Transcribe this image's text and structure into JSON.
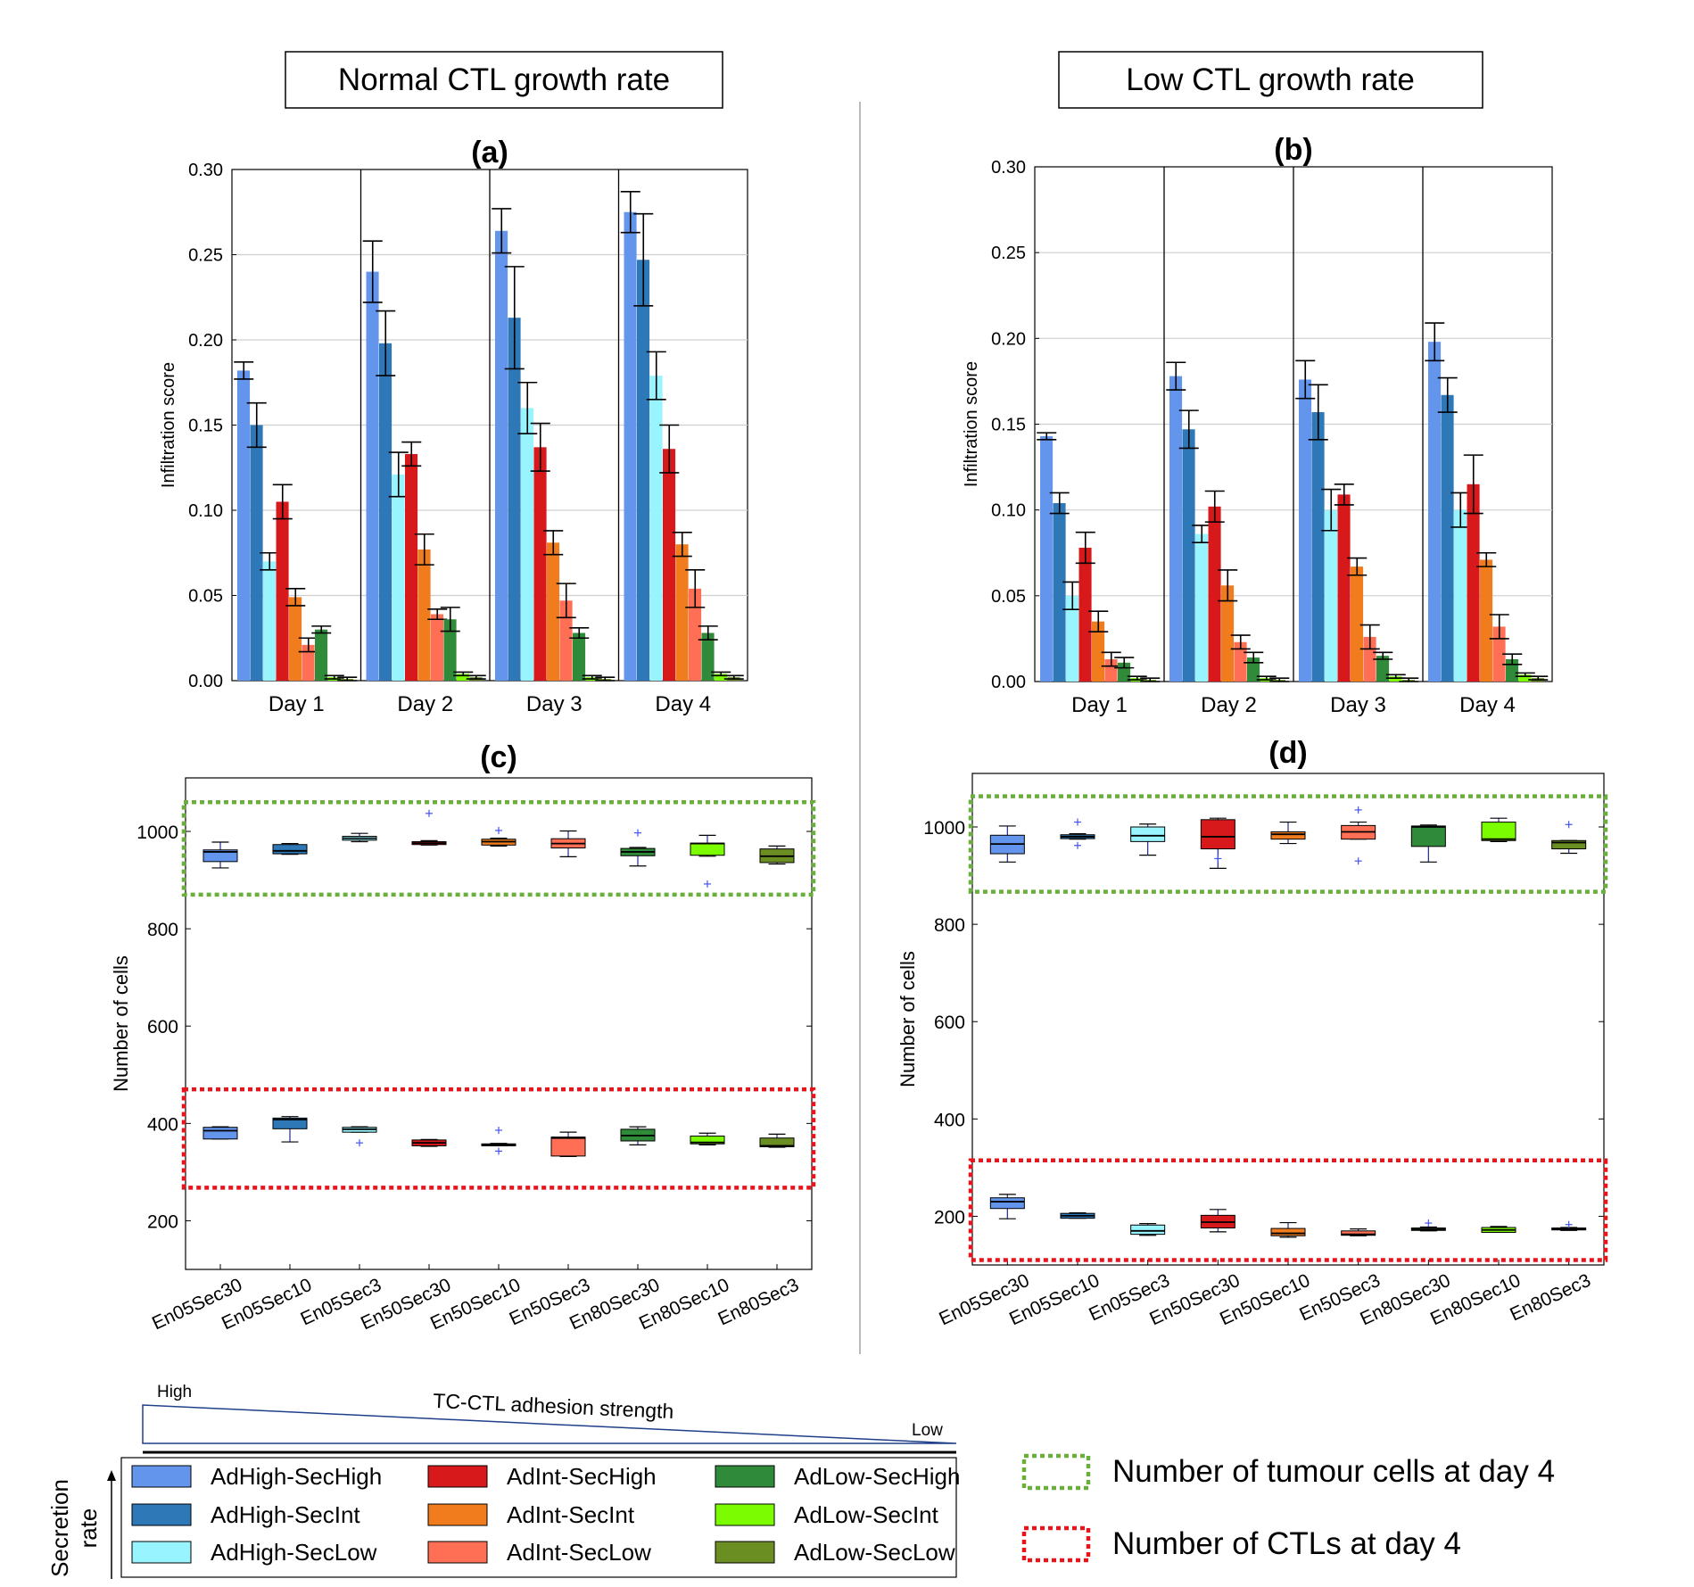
{
  "headers": {
    "left": "Normal CTL growth rate",
    "right": "Low CTL growth rate"
  },
  "groups": [
    {
      "name": "AdHigh-SecHigh",
      "color": "#6495ED"
    },
    {
      "name": "AdHigh-SecInt",
      "color": "#2E78B7"
    },
    {
      "name": "AdHigh-SecLow",
      "color": "#98F5FF"
    },
    {
      "name": "AdInt-SecHigh",
      "color": "#D7191C"
    },
    {
      "name": "AdInt-SecInt",
      "color": "#F07C1E"
    },
    {
      "name": "AdInt-SecLow",
      "color": "#FF6F55"
    },
    {
      "name": "AdLow-SecHigh",
      "color": "#2F8B3A"
    },
    {
      "name": "AdLow-SecInt",
      "color": "#7CFC00"
    },
    {
      "name": "AdLow-SecLow",
      "color": "#6B8E23"
    }
  ],
  "chart_data": [
    {
      "id": "a",
      "type": "bar",
      "title": "(a)",
      "xlabel": "",
      "ylabel": "Infiltration score",
      "ylim": [
        0,
        0.3
      ],
      "yticks": [
        "0.00",
        "0.05",
        "0.10",
        "0.15",
        "0.20",
        "0.25",
        "0.30"
      ],
      "categories": [
        "Day 1",
        "Day 2",
        "Day 3",
        "Day 4"
      ],
      "series": [
        {
          "name": "AdHigh-SecHigh",
          "values": [
            0.182,
            0.24,
            0.264,
            0.275
          ],
          "err": [
            0.005,
            0.018,
            0.013,
            0.012
          ]
        },
        {
          "name": "AdHigh-SecInt",
          "values": [
            0.15,
            0.198,
            0.213,
            0.247
          ],
          "err": [
            0.013,
            0.019,
            0.03,
            0.027
          ]
        },
        {
          "name": "AdHigh-SecLow",
          "values": [
            0.07,
            0.121,
            0.16,
            0.179
          ],
          "err": [
            0.005,
            0.013,
            0.015,
            0.014
          ]
        },
        {
          "name": "AdInt-SecHigh",
          "values": [
            0.105,
            0.133,
            0.137,
            0.136
          ],
          "err": [
            0.01,
            0.007,
            0.014,
            0.014
          ]
        },
        {
          "name": "AdInt-SecInt",
          "values": [
            0.049,
            0.077,
            0.081,
            0.08
          ],
          "err": [
            0.005,
            0.009,
            0.007,
            0.007
          ]
        },
        {
          "name": "AdInt-SecLow",
          "values": [
            0.021,
            0.039,
            0.047,
            0.054
          ],
          "err": [
            0.004,
            0.003,
            0.01,
            0.011
          ]
        },
        {
          "name": "AdLow-SecHigh",
          "values": [
            0.03,
            0.036,
            0.028,
            0.028
          ],
          "err": [
            0.002,
            0.007,
            0.003,
            0.004
          ]
        },
        {
          "name": "AdLow-SecInt",
          "values": [
            0.002,
            0.004,
            0.002,
            0.004
          ],
          "err": [
            0.001,
            0.001,
            0.001,
            0.001
          ]
        },
        {
          "name": "AdLow-SecLow",
          "values": [
            0.001,
            0.002,
            0.001,
            0.002
          ],
          "err": [
            0.001,
            0.001,
            0.001,
            0.001
          ]
        }
      ]
    },
    {
      "id": "b",
      "type": "bar",
      "title": "(b)",
      "xlabel": "",
      "ylabel": "Infiltration score",
      "ylim": [
        0,
        0.3
      ],
      "yticks": [
        "0.00",
        "0.05",
        "0.10",
        "0.15",
        "0.20",
        "0.25",
        "0.30"
      ],
      "categories": [
        "Day 1",
        "Day 2",
        "Day 3",
        "Day 4"
      ],
      "series": [
        {
          "name": "AdHigh-SecHigh",
          "values": [
            0.143,
            0.178,
            0.176,
            0.198
          ],
          "err": [
            0.002,
            0.008,
            0.011,
            0.011
          ]
        },
        {
          "name": "AdHigh-SecInt",
          "values": [
            0.104,
            0.147,
            0.157,
            0.167
          ],
          "err": [
            0.006,
            0.011,
            0.016,
            0.01
          ]
        },
        {
          "name": "AdHigh-SecLow",
          "values": [
            0.05,
            0.086,
            0.1,
            0.1
          ],
          "err": [
            0.008,
            0.005,
            0.012,
            0.01
          ]
        },
        {
          "name": "AdInt-SecHigh",
          "values": [
            0.078,
            0.102,
            0.109,
            0.115
          ],
          "err": [
            0.009,
            0.009,
            0.006,
            0.017
          ]
        },
        {
          "name": "AdInt-SecInt",
          "values": [
            0.035,
            0.056,
            0.067,
            0.071
          ],
          "err": [
            0.006,
            0.009,
            0.005,
            0.004
          ]
        },
        {
          "name": "AdInt-SecLow",
          "values": [
            0.013,
            0.023,
            0.026,
            0.032
          ],
          "err": [
            0.004,
            0.004,
            0.007,
            0.007
          ]
        },
        {
          "name": "AdLow-SecHigh",
          "values": [
            0.011,
            0.014,
            0.015,
            0.013
          ],
          "err": [
            0.003,
            0.003,
            0.002,
            0.003
          ]
        },
        {
          "name": "AdLow-SecInt",
          "values": [
            0.002,
            0.002,
            0.003,
            0.004
          ],
          "err": [
            0.001,
            0.001,
            0.001,
            0.001
          ]
        },
        {
          "name": "AdLow-SecLow",
          "values": [
            0.001,
            0.001,
            0.001,
            0.002
          ],
          "err": [
            0.001,
            0.001,
            0.001,
            0.001
          ]
        }
      ]
    },
    {
      "id": "c",
      "type": "box",
      "title": "(c)",
      "xlabel": "",
      "ylabel": "Number of cells",
      "ylim": [
        100,
        1110
      ],
      "yticks": [
        "200",
        "400",
        "600",
        "800",
        "1000"
      ],
      "categories": [
        "En05Sec30",
        "En05Sec10",
        "En05Sec3",
        "En50Sec30",
        "En50Sec10",
        "En50Sec3",
        "En80Sec30",
        "En80Sec10",
        "En80Sec3"
      ],
      "tumour_boxes": [
        {
          "whisker_low": 925,
          "q1": 938,
          "median": 958,
          "q3": 962,
          "whisker_high": 978,
          "outliers": []
        },
        {
          "whisker_low": 953,
          "q1": 954,
          "median": 960,
          "q3": 973,
          "whisker_high": 975,
          "outliers": []
        },
        {
          "whisker_low": 979,
          "q1": 982,
          "median": 986,
          "q3": 990,
          "whisker_high": 996,
          "outliers": []
        },
        {
          "whisker_low": 972,
          "q1": 973,
          "median": 976,
          "q3": 979,
          "whisker_high": 981,
          "outliers": [
            1037
          ]
        },
        {
          "whisker_low": 970,
          "q1": 972,
          "median": 979,
          "q3": 984,
          "whisker_high": 986,
          "outliers": [
            1002
          ]
        },
        {
          "whisker_low": 948,
          "q1": 966,
          "median": 975,
          "q3": 985,
          "whisker_high": 1001,
          "outliers": []
        },
        {
          "whisker_low": 929,
          "q1": 950,
          "median": 958,
          "q3": 965,
          "whisker_high": 967,
          "outliers": [
            997
          ]
        },
        {
          "whisker_low": 949,
          "q1": 951,
          "median": 975,
          "q3": 976,
          "whisker_high": 992,
          "outliers": [
            892
          ]
        },
        {
          "whisker_low": 933,
          "q1": 936,
          "median": 949,
          "q3": 964,
          "whisker_high": 970,
          "outliers": []
        }
      ],
      "ctl_boxes": [
        {
          "whisker_low": 368,
          "q1": 368,
          "median": 385,
          "q3": 392,
          "whisker_high": 393,
          "outliers": []
        },
        {
          "whisker_low": 362,
          "q1": 389,
          "median": 408,
          "q3": 411,
          "whisker_high": 414,
          "outliers": []
        },
        {
          "whisker_low": 382,
          "q1": 382,
          "median": 388,
          "q3": 392,
          "whisker_high": 393,
          "outliers": [
            360
          ]
        },
        {
          "whisker_low": 353,
          "q1": 354,
          "median": 360,
          "q3": 366,
          "whisker_high": 367,
          "outliers": []
        },
        {
          "whisker_low": 354,
          "q1": 354,
          "median": 356,
          "q3": 358,
          "whisker_high": 359,
          "outliers": [
            386,
            343
          ]
        },
        {
          "whisker_low": 332,
          "q1": 333,
          "median": 370,
          "q3": 372,
          "whisker_high": 382,
          "outliers": []
        },
        {
          "whisker_low": 356,
          "q1": 364,
          "median": 375,
          "q3": 388,
          "whisker_high": 393,
          "outliers": []
        },
        {
          "whisker_low": 356,
          "q1": 358,
          "median": 361,
          "q3": 374,
          "whisker_high": 380,
          "outliers": []
        },
        {
          "whisker_low": 351,
          "q1": 352,
          "median": 354,
          "q3": 370,
          "whisker_high": 378,
          "outliers": []
        }
      ]
    },
    {
      "id": "d",
      "type": "box",
      "title": "(d)",
      "xlabel": "",
      "ylabel": "Number of cells",
      "ylim": [
        100,
        1110
      ],
      "yticks": [
        "200",
        "400",
        "600",
        "800",
        "1000"
      ],
      "categories": [
        "En05Sec30",
        "En05Sec10",
        "En05Sec3",
        "En50Sec30",
        "En50Sec10",
        "En50Sec3",
        "En80Sec30",
        "En80Sec10",
        "En80Sec3"
      ],
      "tumour_boxes": [
        {
          "whisker_low": 928,
          "q1": 945,
          "median": 965,
          "q3": 983,
          "whisker_high": 1002,
          "outliers": []
        },
        {
          "whisker_low": 975,
          "q1": 976,
          "median": 980,
          "q3": 984,
          "whisker_high": 986,
          "outliers": [
            1010,
            962
          ]
        },
        {
          "whisker_low": 942,
          "q1": 970,
          "median": 982,
          "q3": 1000,
          "whisker_high": 1006,
          "outliers": []
        },
        {
          "whisker_low": 915,
          "q1": 955,
          "median": 980,
          "q3": 1015,
          "whisker_high": 1018,
          "outliers": [
            935
          ]
        },
        {
          "whisker_low": 966,
          "q1": 975,
          "median": 985,
          "q3": 990,
          "whisker_high": 1010,
          "outliers": []
        },
        {
          "whisker_low": 975,
          "q1": 975,
          "median": 990,
          "q3": 1003,
          "whisker_high": 1010,
          "outliers": [
            1035,
            930
          ]
        },
        {
          "whisker_low": 928,
          "q1": 960,
          "median": 1000,
          "q3": 1002,
          "whisker_high": 1004,
          "outliers": []
        },
        {
          "whisker_low": 970,
          "q1": 972,
          "median": 975,
          "q3": 1010,
          "whisker_high": 1018,
          "outliers": []
        },
        {
          "whisker_low": 946,
          "q1": 955,
          "median": 968,
          "q3": 972,
          "whisker_high": 972,
          "outliers": [
            1005
          ]
        }
      ],
      "ctl_boxes": [
        {
          "whisker_low": 195,
          "q1": 216,
          "median": 230,
          "q3": 238,
          "whisker_high": 245,
          "outliers": []
        },
        {
          "whisker_low": 196,
          "q1": 196,
          "median": 201,
          "q3": 206,
          "whisker_high": 207,
          "outliers": []
        },
        {
          "whisker_low": 161,
          "q1": 163,
          "median": 170,
          "q3": 182,
          "whisker_high": 185,
          "outliers": []
        },
        {
          "whisker_low": 168,
          "q1": 176,
          "median": 188,
          "q3": 202,
          "whisker_high": 214,
          "outliers": []
        },
        {
          "whisker_low": 157,
          "q1": 160,
          "median": 165,
          "q3": 175,
          "whisker_high": 187,
          "outliers": []
        },
        {
          "whisker_low": 160,
          "q1": 161,
          "median": 163,
          "q3": 170,
          "whisker_high": 174,
          "outliers": []
        },
        {
          "whisker_low": 170,
          "q1": 171,
          "median": 173,
          "q3": 176,
          "whisker_high": 178,
          "outliers": [
            186
          ]
        },
        {
          "whisker_low": 167,
          "q1": 167,
          "median": 172,
          "q3": 177,
          "whisker_high": 179,
          "outliers": []
        },
        {
          "whisker_low": 171,
          "q1": 172,
          "median": 174,
          "q3": 176,
          "whisker_high": 177,
          "outliers": [
            183
          ]
        }
      ]
    }
  ],
  "legend": {
    "adhesion_title": "TC-CTL adhesion strength",
    "adhesion_high": "High",
    "adhesion_low": "Low",
    "secretion_label": "Secretion rate",
    "secretion_line1": "Secretion",
    "secretion_line2": "rate",
    "annotations": [
      {
        "text": "Number of tumour cells at day 4",
        "color": "#6AAF3C"
      },
      {
        "text": "Number of CTLs at day 4",
        "color": "#E8141B"
      }
    ]
  }
}
